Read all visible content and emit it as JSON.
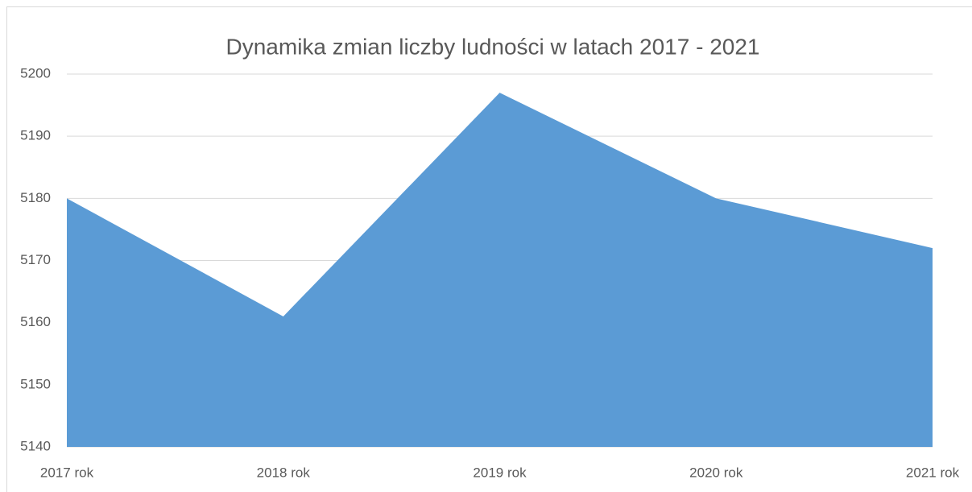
{
  "chart_data": {
    "type": "area",
    "title": "Dynamika zmian liczby ludności w latach 2017 - 2021",
    "categories": [
      "2017 rok",
      "2018 rok",
      "2019 rok",
      "2020 rok",
      "2021 rok"
    ],
    "values": [
      5180,
      5161,
      5197,
      5180,
      5172
    ],
    "color": "#5b9bd5",
    "ylim": [
      5140,
      5200
    ],
    "yticks": [
      5140,
      5150,
      5160,
      5170,
      5180,
      5190,
      5200
    ],
    "grid": true
  }
}
